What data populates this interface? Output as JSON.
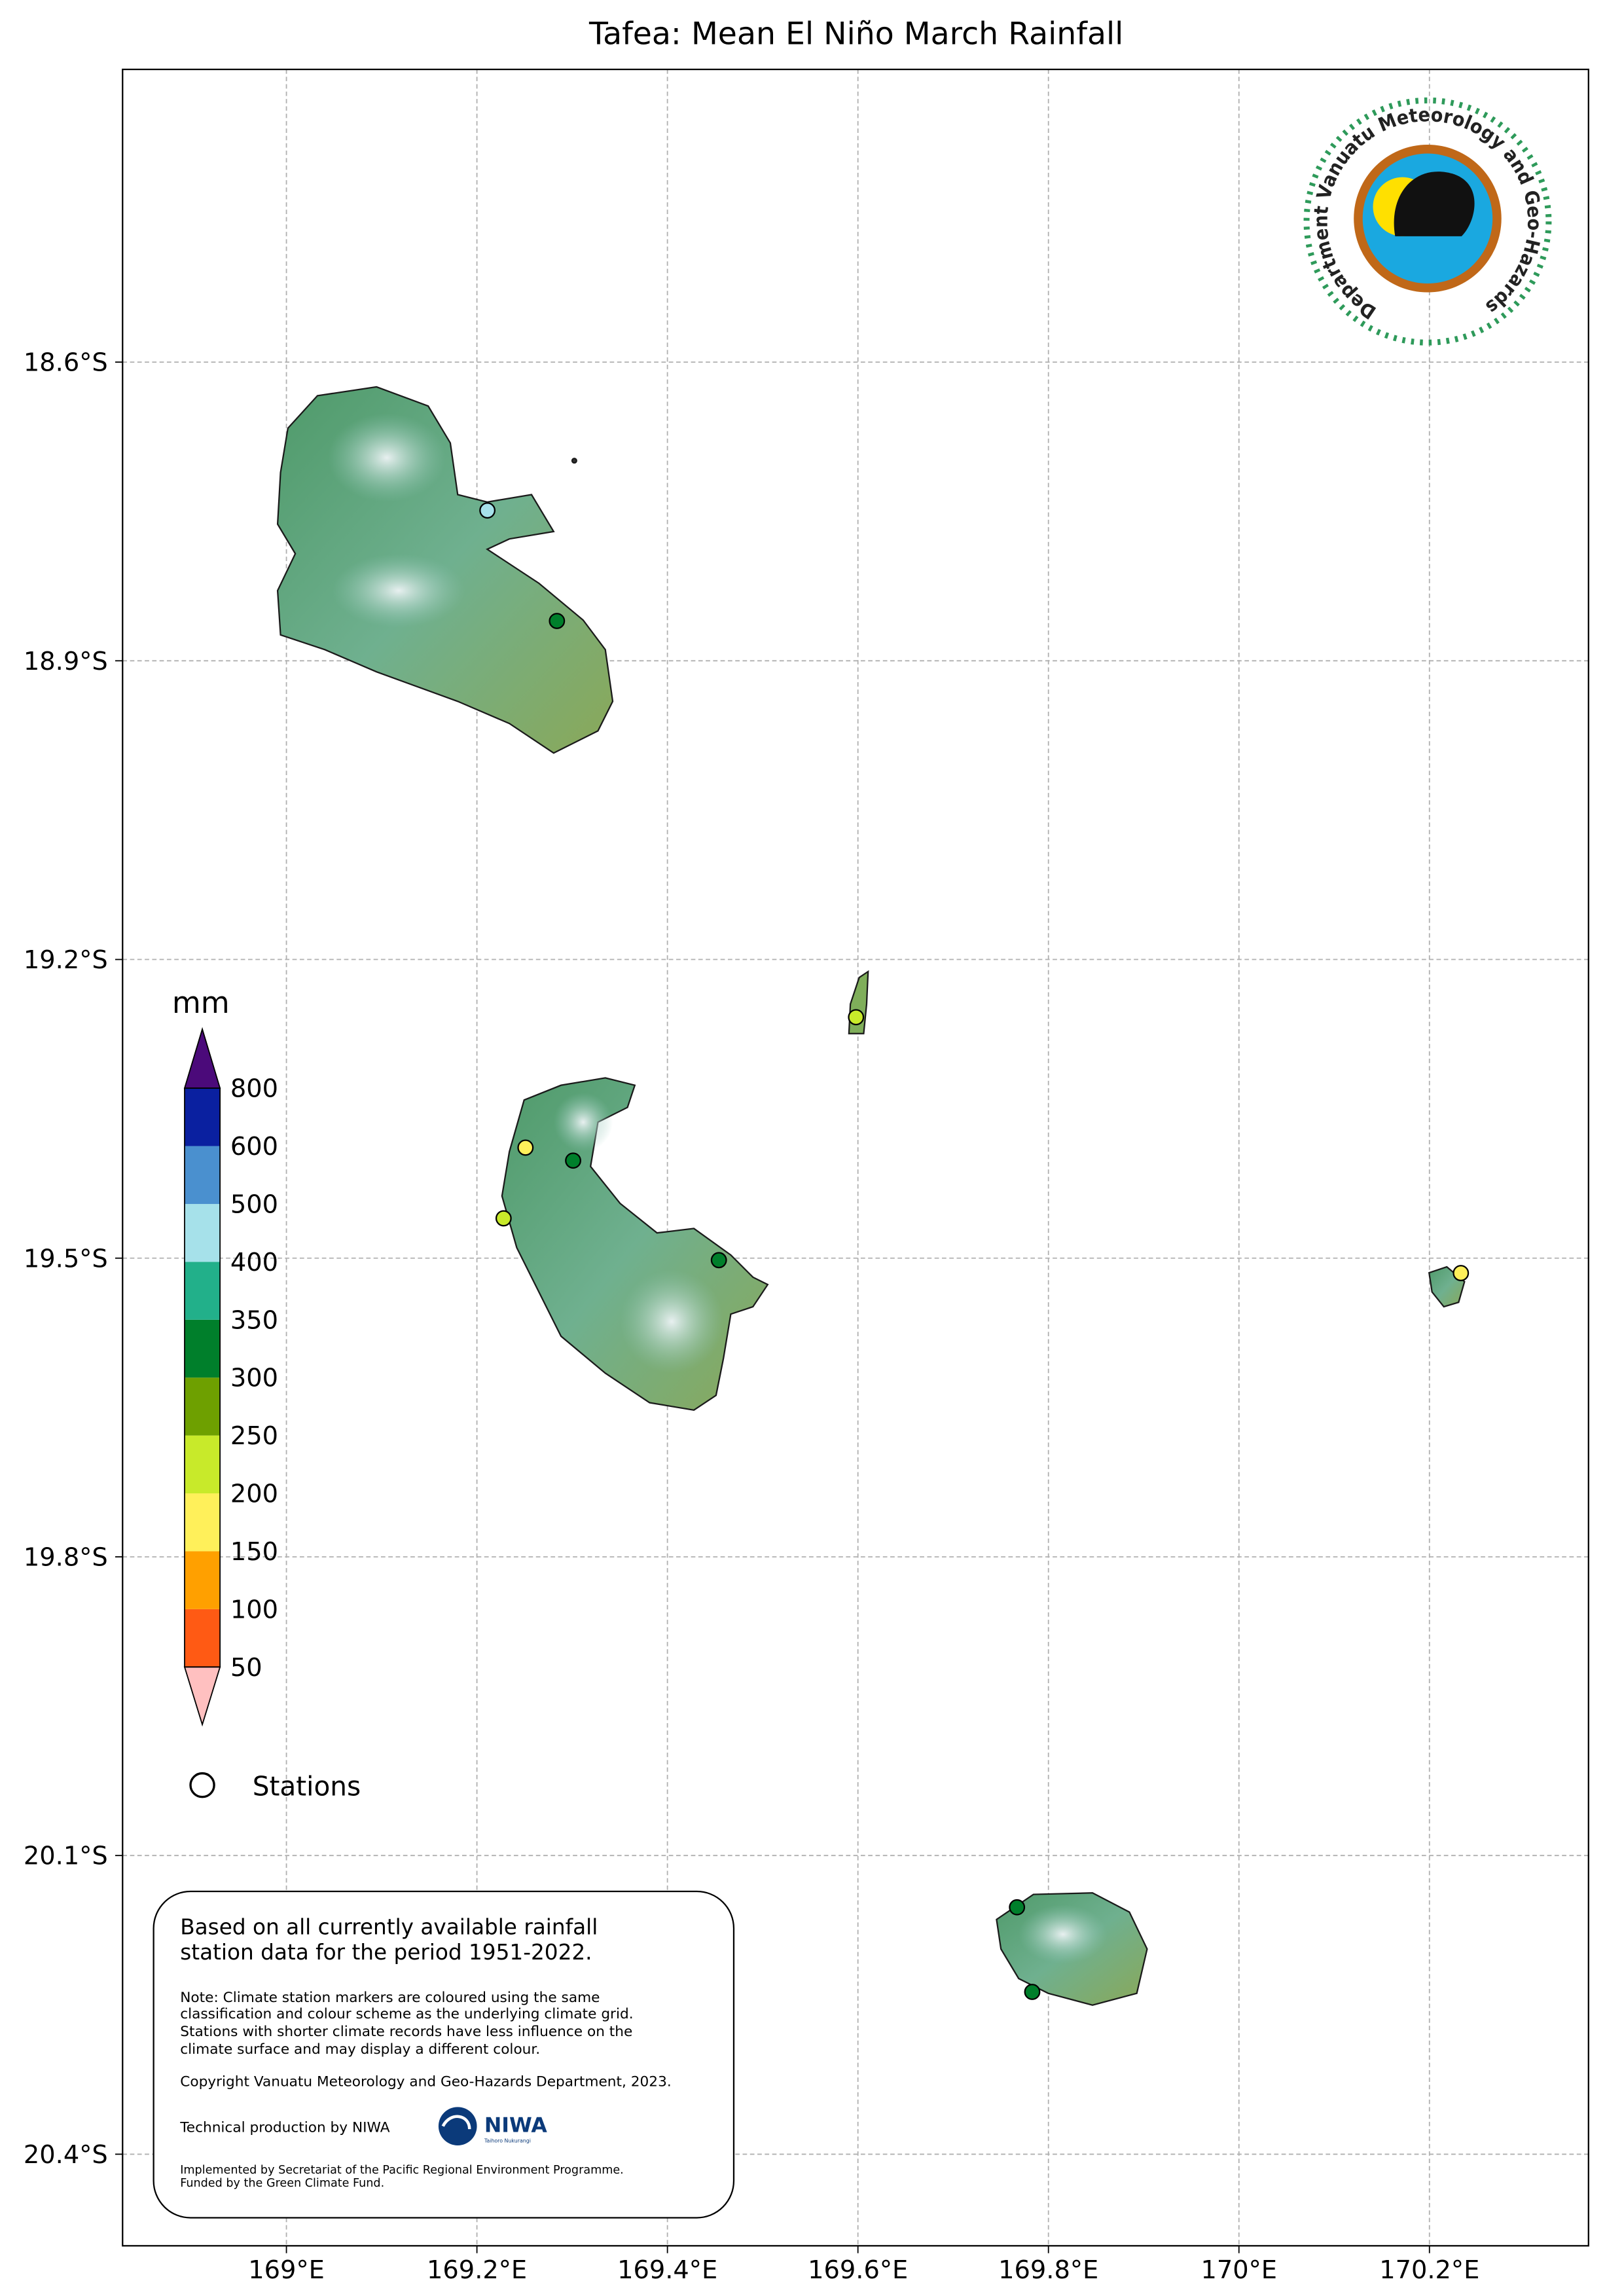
{
  "map": {
    "title": "Tafea: Mean El Niño March Rainfall",
    "xlim": [
      168.828,
      170.367
    ],
    "ylim": [
      -20.492,
      -18.306
    ],
    "xticks": [
      {
        "value": 169.0,
        "label": "169°E"
      },
      {
        "value": 169.2,
        "label": "169.2°E"
      },
      {
        "value": 169.4,
        "label": "169.4°E"
      },
      {
        "value": 169.6,
        "label": "169.6°E"
      },
      {
        "value": 169.8,
        "label": "169.8°E"
      },
      {
        "value": 170.0,
        "label": "170°E"
      },
      {
        "value": 170.2,
        "label": "170.2°E"
      }
    ],
    "yticks": [
      {
        "value": -18.6,
        "label": "18.6°S"
      },
      {
        "value": -18.9,
        "label": "18.9°S"
      },
      {
        "value": -19.2,
        "label": "19.2°S"
      },
      {
        "value": -19.5,
        "label": "19.5°S"
      },
      {
        "value": -19.8,
        "label": "19.8°S"
      },
      {
        "value": -20.1,
        "label": "20.1°S"
      },
      {
        "value": -20.4,
        "label": "20.4°S"
      }
    ],
    "grid": true,
    "legend": {
      "title": "mm",
      "levels": [
        50,
        100,
        150,
        200,
        250,
        300,
        350,
        400,
        500,
        600,
        800
      ],
      "colors": [
        "#ff5a14",
        "#ffa000",
        "#fff05a",
        "#c8ea2a",
        "#6ea000",
        "#007f2b",
        "#22b08a",
        "#a6e1ea",
        "#4a90cf",
        "#0a20a0"
      ],
      "under_color": "#ffc0c0",
      "over_color": "#4b0a7a",
      "stations_label": "Stations"
    },
    "stations": [
      {
        "lon": 169.211,
        "lat": -18.749,
        "color": "#a6e1ea"
      },
      {
        "lon": 169.284,
        "lat": -18.86,
        "color": "#007f2b"
      },
      {
        "lon": 169.598,
        "lat": -19.258,
        "color": "#c8ea2a"
      },
      {
        "lon": 169.251,
        "lat": -19.389,
        "color": "#fff05a"
      },
      {
        "lon": 169.301,
        "lat": -19.402,
        "color": "#007f2b"
      },
      {
        "lon": 169.228,
        "lat": -19.46,
        "color": "#c8ea2a"
      },
      {
        "lon": 169.454,
        "lat": -19.502,
        "color": "#007f2b"
      },
      {
        "lon": 170.233,
        "lat": -19.515,
        "color": "#fff05a"
      },
      {
        "lon": 169.767,
        "lat": -20.152,
        "color": "#007f2b"
      },
      {
        "lon": 169.783,
        "lat": -20.237,
        "color": "#007f2b"
      }
    ],
    "logo": {
      "text": "Department Vanuatu Meteorology and Geo-Hazards"
    }
  },
  "notes": {
    "summary": [
      "Based on all currently available rainfall",
      "station data for the period 1951-2022."
    ],
    "note": [
      "Note: Climate station markers are coloured using the same",
      "classification and colour scheme as the underlying climate grid.",
      "Stations with shorter climate records have less influence on the",
      "climate surface and may display a different colour."
    ],
    "copyright": "Copyright Vanuatu Meteorology and Geo-Hazards Department, 2023.",
    "production": "Technical production by NIWA",
    "niwa_logo": [
      "NIWA",
      "Taihoro Nukurangi"
    ],
    "funding": [
      "Implemented by Secretariat of the Pacific Regional Environment Programme.",
      "Funded by the Green Climate Fund."
    ]
  }
}
